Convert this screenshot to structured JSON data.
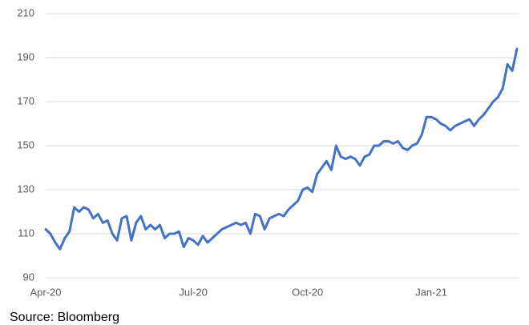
{
  "chart_data": {
    "type": "line",
    "note": "Source: Bloomberg",
    "categories": [
      "Apr-20",
      null,
      null,
      null,
      null,
      null,
      null,
      null,
      null,
      null,
      null,
      null,
      null,
      null,
      null,
      null,
      null,
      null,
      null,
      null,
      null,
      null,
      null,
      null,
      null,
      null,
      null,
      null,
      null,
      null,
      null,
      "Jul-20",
      null,
      null,
      null,
      null,
      null,
      null,
      null,
      null,
      null,
      null,
      null,
      null,
      null,
      null,
      null,
      null,
      null,
      null,
      null,
      null,
      null,
      null,
      null,
      "Oct-20",
      null,
      null,
      null,
      null,
      null,
      null,
      null,
      null,
      null,
      null,
      null,
      null,
      null,
      null,
      null,
      null,
      null,
      null,
      null,
      null,
      null,
      null,
      null,
      null,
      null,
      "Jan-21",
      null,
      null,
      null,
      null,
      null,
      null,
      null,
      null,
      null,
      null,
      null,
      null,
      null,
      null,
      null,
      null,
      null,
      null
    ],
    "values": [
      112,
      110,
      106,
      103,
      108,
      111,
      122,
      120,
      122,
      121,
      117,
      119,
      115,
      116,
      110,
      107,
      117,
      118,
      107,
      115,
      118,
      112,
      114,
      112,
      114,
      108,
      110,
      110,
      111,
      104,
      108,
      107,
      105,
      109,
      106,
      108,
      110,
      112,
      113,
      114,
      115,
      114,
      115,
      110,
      119,
      118,
      112,
      117,
      118,
      119,
      118,
      121,
      123,
      125,
      130,
      131,
      129,
      137,
      140,
      143,
      139,
      150,
      145,
      144,
      145,
      144,
      141,
      145,
      146,
      150,
      150,
      152,
      152,
      151,
      152,
      149,
      148,
      150,
      151,
      155,
      163,
      163,
      162,
      160,
      159,
      157,
      159,
      160,
      161,
      162,
      159,
      162,
      164,
      167,
      170,
      172,
      176,
      187,
      184,
      194
    ],
    "color": "#4472c4",
    "ylim": [
      90,
      210
    ],
    "yticks": [
      90,
      110,
      130,
      150,
      170,
      190,
      210
    ],
    "grid": true
  }
}
